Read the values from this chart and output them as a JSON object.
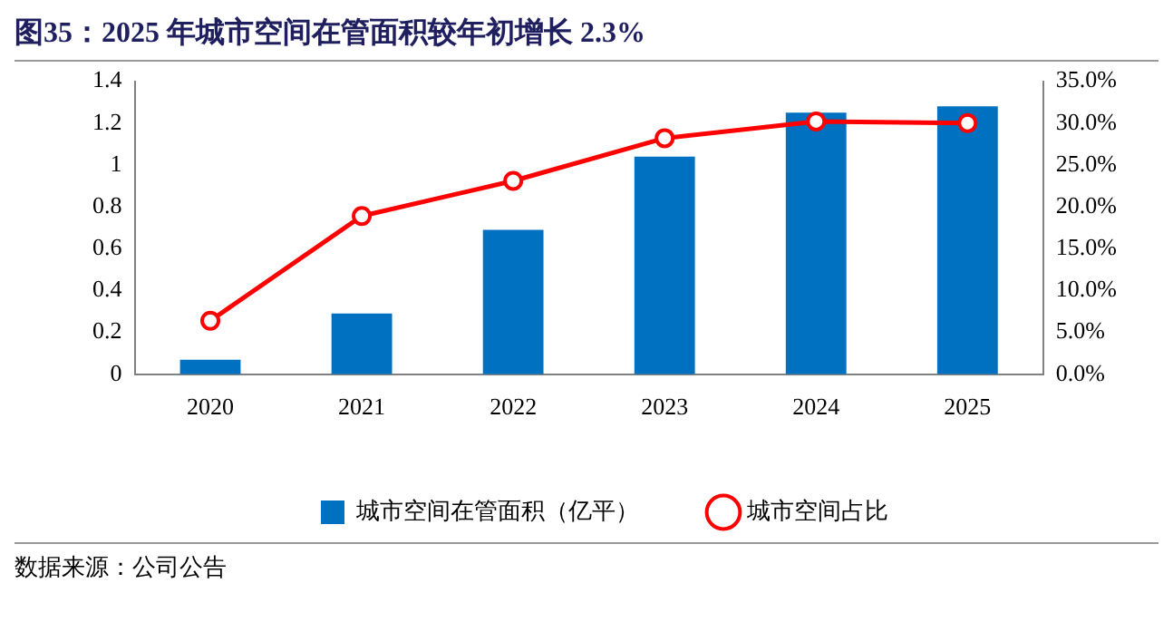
{
  "chart_data": {
    "type": "bar",
    "title": "图35：2025 年城市空间在管面积较年初增长 2.3%",
    "categories": [
      "2020",
      "2021",
      "2022",
      "2023",
      "2024",
      "2025"
    ],
    "series": [
      {
        "name": "城市空间在管面积（亿平）",
        "color": "#0070c0",
        "values": [
          0.07,
          0.29,
          0.69,
          1.04,
          1.25,
          1.28
        ]
      },
      {
        "name": "城市空间占比",
        "type": "line",
        "axis": "y2",
        "color": "#ff0000",
        "marker": "circle",
        "values": [
          6.4,
          18.9,
          23.1,
          28.2,
          30.2,
          30.0
        ]
      }
    ],
    "ylim": [
      0,
      1.4
    ],
    "yticks": [
      0,
      0.2,
      0.4,
      0.6,
      0.8,
      1,
      1.2,
      1.4
    ],
    "y2lim": [
      0,
      35
    ],
    "y2ticks": [
      {
        "value": 0,
        "label": "0.0%"
      },
      {
        "value": 5,
        "label": "5.0%"
      },
      {
        "value": 10,
        "label": "10.0%"
      },
      {
        "value": 15,
        "label": "15.0%"
      },
      {
        "value": 20,
        "label": "20.0%"
      },
      {
        "value": 25,
        "label": "25.0%"
      },
      {
        "value": 30,
        "label": "30.0%"
      },
      {
        "value": 35,
        "label": "35.0%"
      }
    ],
    "legend": "bottom",
    "annotations": [
      "数据来源：公司公告"
    ]
  }
}
